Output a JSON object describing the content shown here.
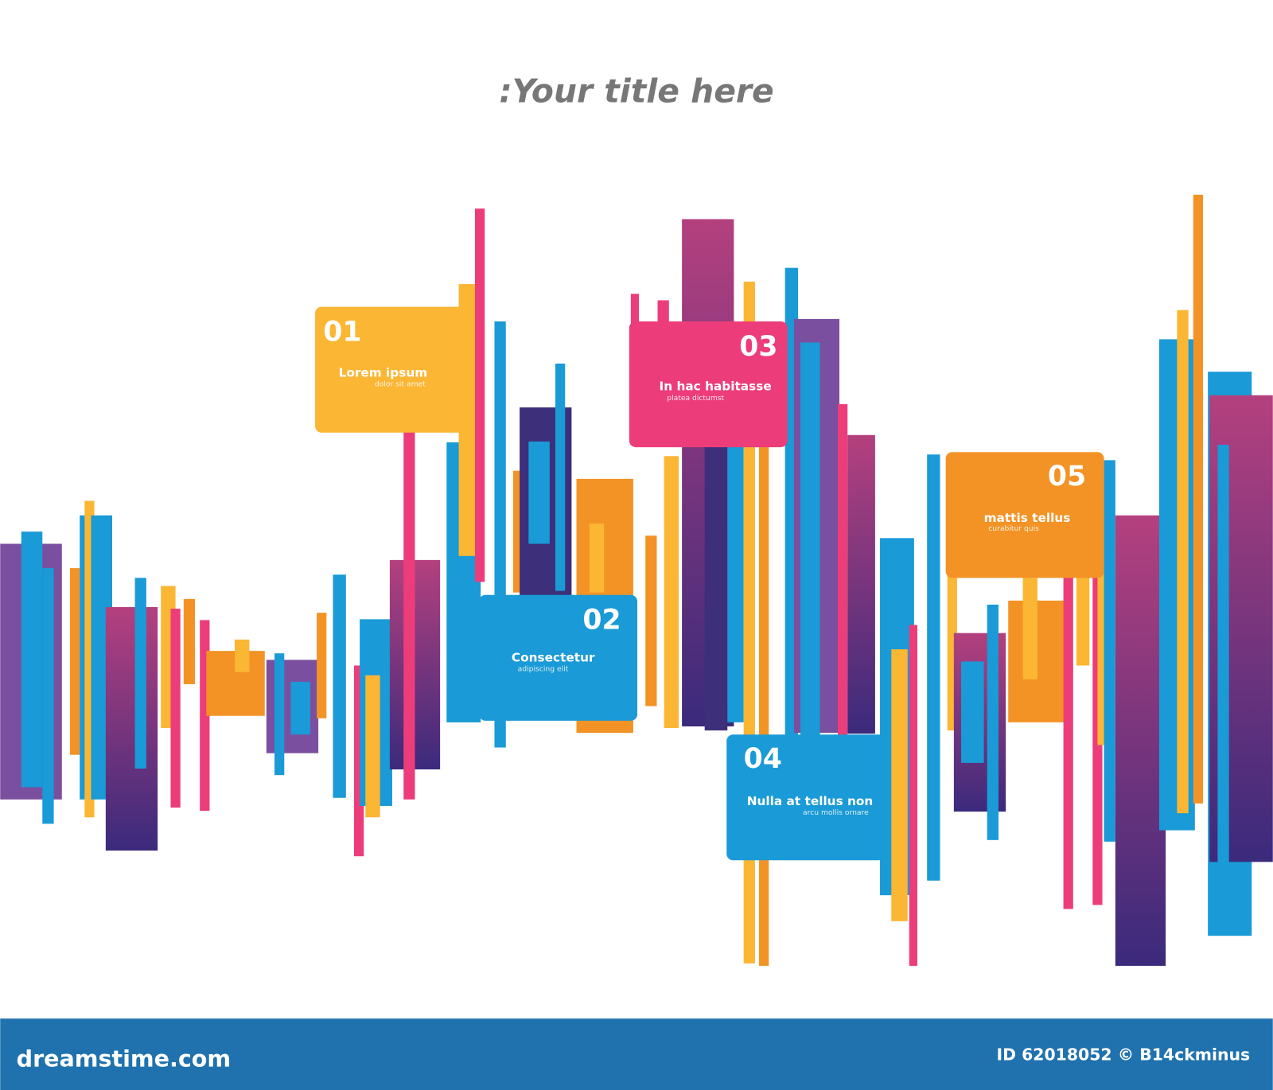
{
  "header": {
    "title": ":Your title here"
  },
  "items": [
    {
      "number": "01",
      "title": "Lorem ipsum",
      "subtitle": "dolor sit amet"
    },
    {
      "number": "02",
      "title": "Consectetur",
      "subtitle": "adipiscing elit"
    },
    {
      "number": "03",
      "title": "In hac habitasse",
      "subtitle": "platea dictumst"
    },
    {
      "number": "04",
      "title": "Nulla at tellus non",
      "subtitle": "arcu mollis ornare"
    },
    {
      "number": "05",
      "title": "mattis tellus",
      "subtitle": "curabitur quis"
    }
  ],
  "footer": {
    "brand": "dreamstime.com",
    "credit": "ID 62018052 © B14ckminus"
  }
}
